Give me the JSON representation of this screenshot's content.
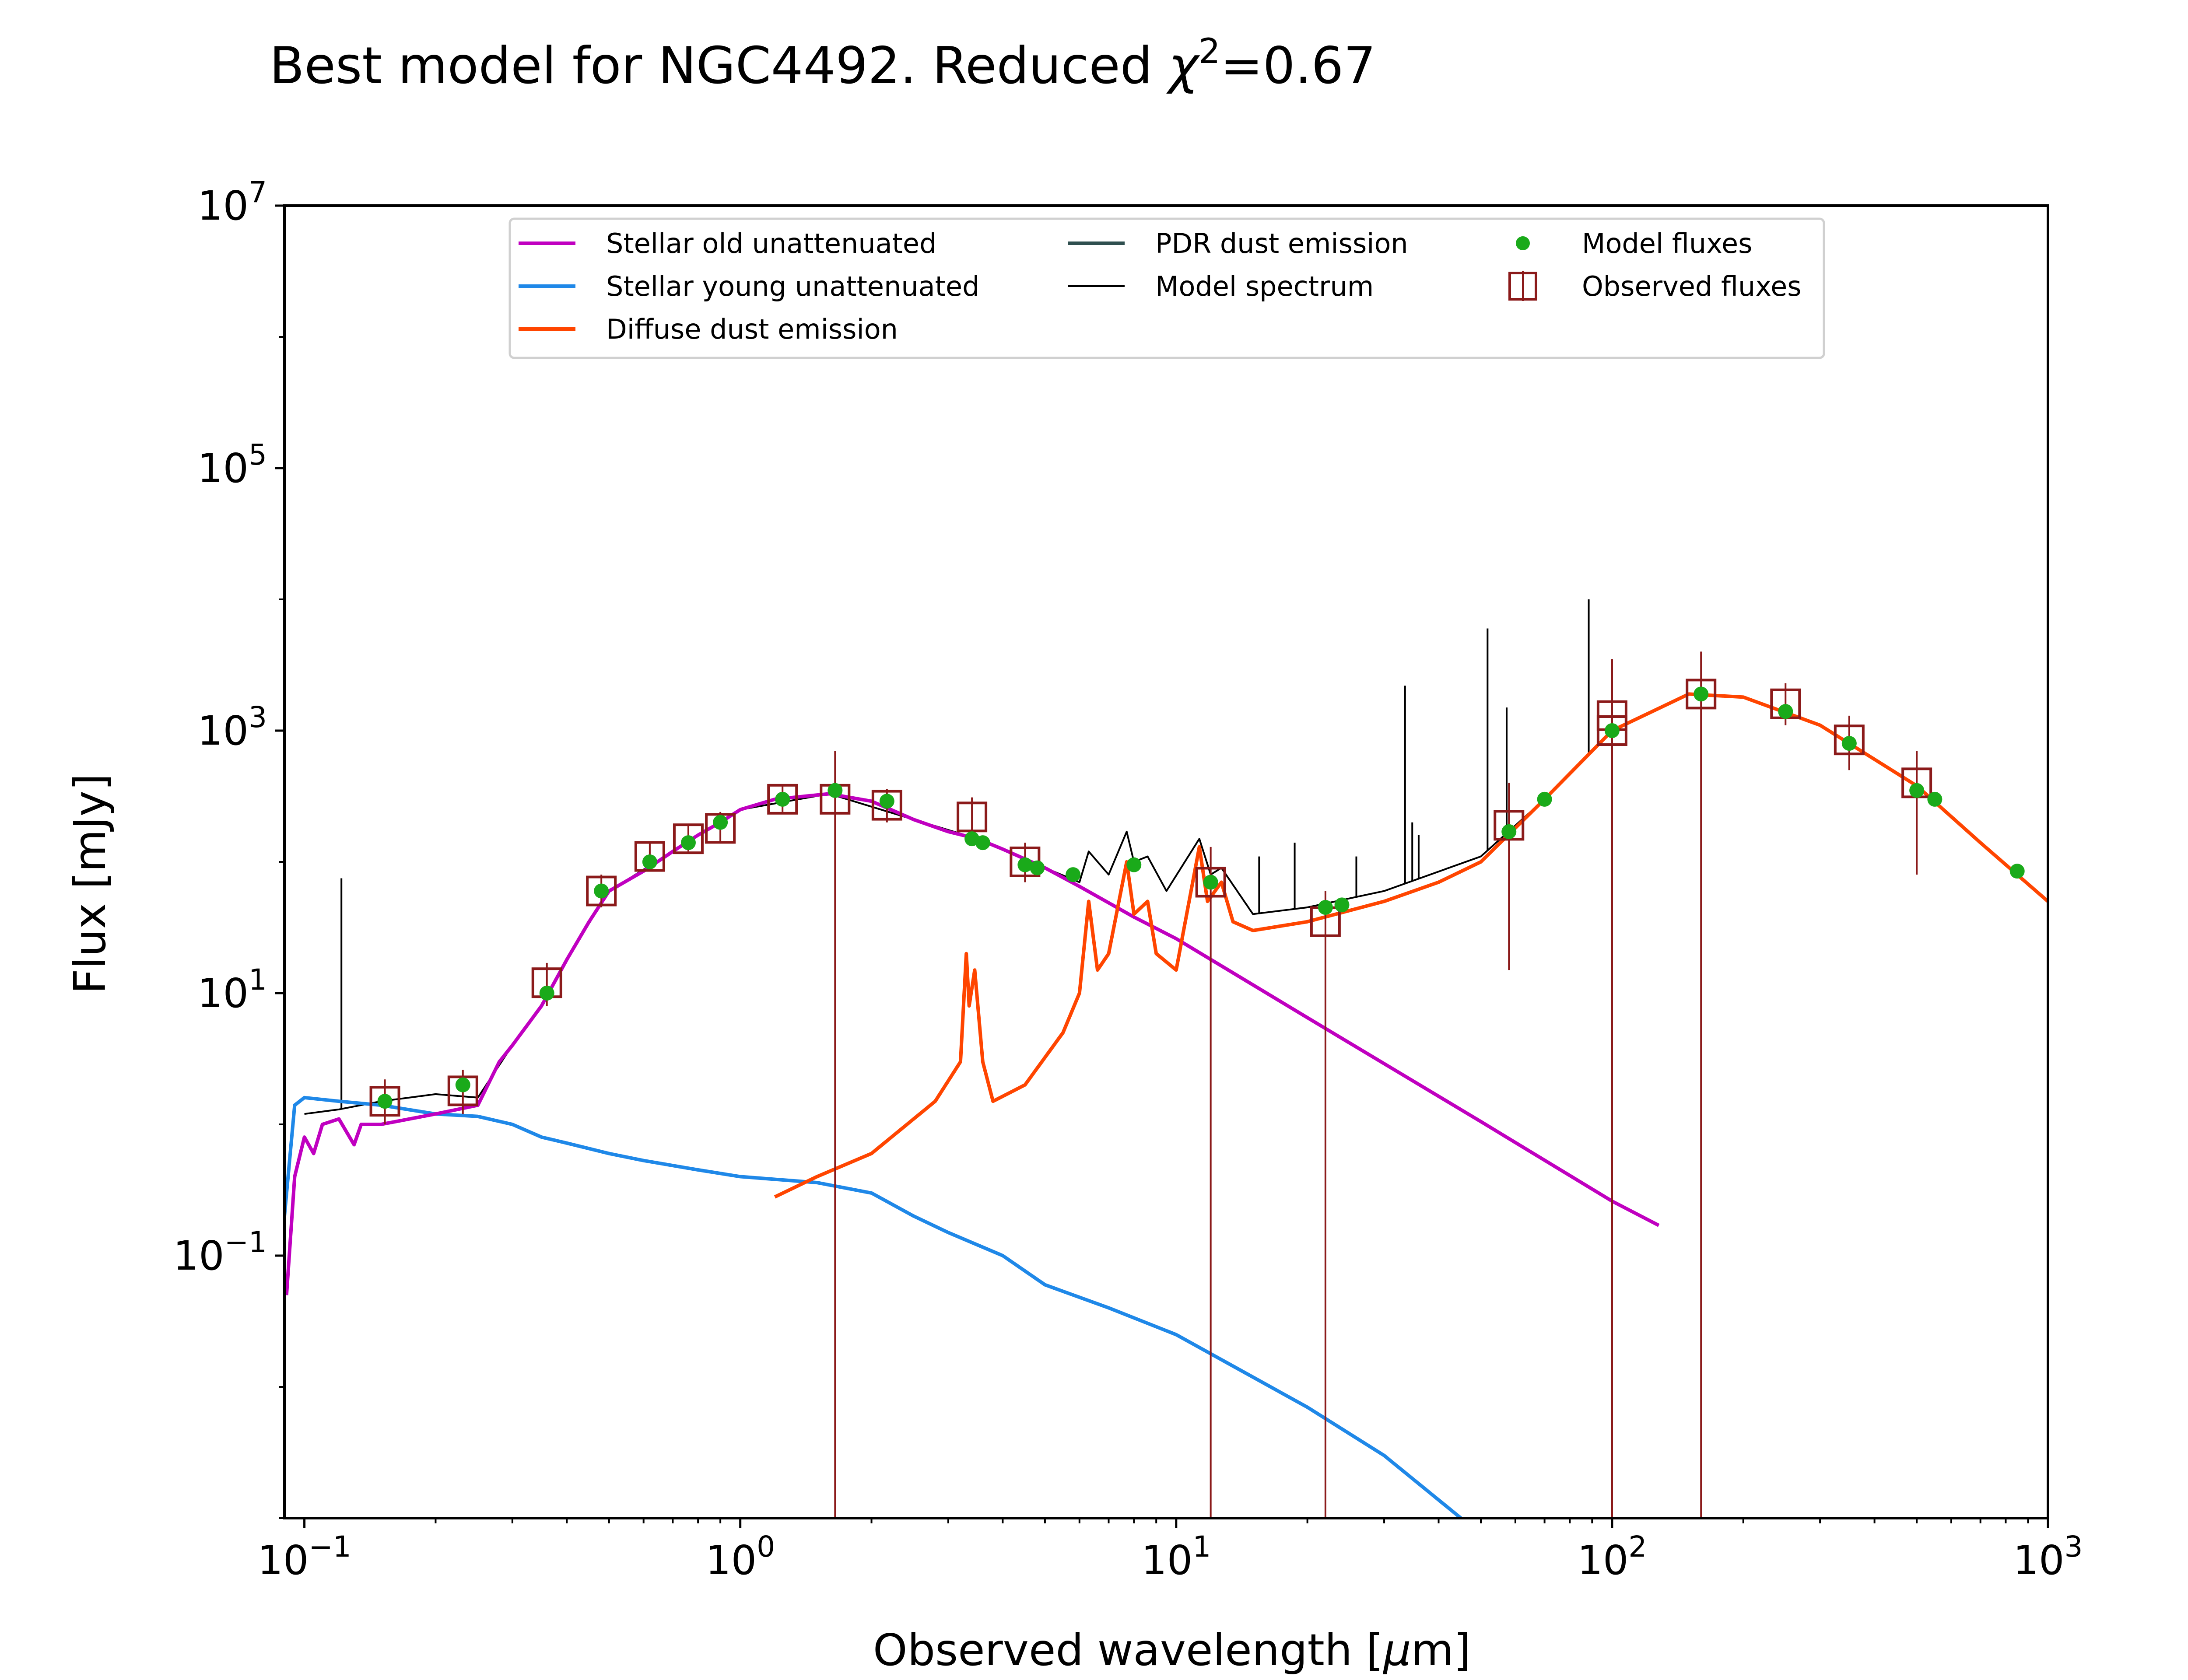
{
  "chart_data": {
    "type": "line",
    "title": "Best model for NGC4492. Reduced χ²=0.67",
    "title_parts": {
      "main": "Best model for NGC4492. Reduced ",
      "chi": "χ",
      "sup": "2",
      "value": "=0.67"
    },
    "xlabel": "Observed wavelength [μm]",
    "xlabel_parts": {
      "main": "Observed wavelength [",
      "mu": "μ",
      "unit": "m]"
    },
    "ylabel": "Flux [mJy]",
    "xscale": "log",
    "yscale": "log",
    "xlim": [
      0.09,
      1000
    ],
    "ylim": [
      0.001,
      10000000
    ],
    "grid": false,
    "legend_position": "top-center",
    "x_ticks": [
      {
        "base": "10",
        "exp": "−1",
        "value": 0.1
      },
      {
        "base": "10",
        "exp": "0",
        "value": 1
      },
      {
        "base": "10",
        "exp": "1",
        "value": 10
      },
      {
        "base": "10",
        "exp": "2",
        "value": 100
      },
      {
        "base": "10",
        "exp": "3",
        "value": 1000
      }
    ],
    "y_ticks": [
      {
        "base": "10",
        "exp": "−1",
        "value": 0.1
      },
      {
        "base": "10",
        "exp": "1",
        "value": 10
      },
      {
        "base": "10",
        "exp": "3",
        "value": 1000
      },
      {
        "base": "10",
        "exp": "5",
        "value": 100000
      },
      {
        "base": "10",
        "exp": "7",
        "value": 10000000
      }
    ],
    "series": [
      {
        "name": "Stellar old unattenuated",
        "color": "#c000c0",
        "kind": "line",
        "points": [
          [
            0.091,
            0.05
          ],
          [
            0.095,
            0.4
          ],
          [
            0.1,
            0.8
          ],
          [
            0.105,
            0.6
          ],
          [
            0.11,
            1.0
          ],
          [
            0.12,
            1.1
          ],
          [
            0.13,
            0.7
          ],
          [
            0.135,
            1.0
          ],
          [
            0.15,
            1.0
          ],
          [
            0.2,
            1.2
          ],
          [
            0.25,
            1.4
          ],
          [
            0.28,
            3
          ],
          [
            0.3,
            4
          ],
          [
            0.35,
            8
          ],
          [
            0.4,
            18
          ],
          [
            0.45,
            35
          ],
          [
            0.5,
            60
          ],
          [
            0.6,
            85
          ],
          [
            0.7,
            120
          ],
          [
            0.8,
            160
          ],
          [
            0.9,
            200
          ],
          [
            1.0,
            250
          ],
          [
            1.2,
            300
          ],
          [
            1.6,
            330
          ],
          [
            2.0,
            290
          ],
          [
            2.5,
            210
          ],
          [
            3.0,
            170
          ],
          [
            3.5,
            150
          ],
          [
            4.0,
            125
          ],
          [
            5.0,
            90
          ],
          [
            6.0,
            65
          ],
          [
            8.0,
            38
          ],
          [
            10.0,
            26
          ],
          [
            20.0,
            6.5
          ],
          [
            50.0,
            1.05
          ],
          [
            100.0,
            0.26
          ],
          [
            128.0,
            0.17
          ]
        ]
      },
      {
        "name": "Stellar young unattenuated",
        "color": "#1f88e8",
        "kind": "line",
        "points": [
          [
            0.09,
            0.2
          ],
          [
            0.095,
            1.4
          ],
          [
            0.1,
            1.6
          ],
          [
            0.12,
            1.5
          ],
          [
            0.15,
            1.4
          ],
          [
            0.2,
            1.2
          ],
          [
            0.25,
            1.15
          ],
          [
            0.3,
            1.0
          ],
          [
            0.35,
            0.8
          ],
          [
            0.4,
            0.72
          ],
          [
            0.5,
            0.6
          ],
          [
            0.6,
            0.53
          ],
          [
            0.8,
            0.45
          ],
          [
            1.0,
            0.4
          ],
          [
            1.5,
            0.36
          ],
          [
            2.0,
            0.3
          ],
          [
            2.5,
            0.2
          ],
          [
            3.0,
            0.15
          ],
          [
            4.0,
            0.1
          ],
          [
            5.0,
            0.06
          ],
          [
            7.0,
            0.04
          ],
          [
            10.0,
            0.025
          ],
          [
            20.0,
            0.007
          ],
          [
            30.0,
            0.003
          ],
          [
            45.0,
            0.001
          ]
        ]
      },
      {
        "name": "Diffuse dust emission",
        "color": "#ff4500",
        "kind": "line",
        "points": [
          [
            1.2,
            0.28
          ],
          [
            1.5,
            0.4
          ],
          [
            2.0,
            0.6
          ],
          [
            2.8,
            1.5
          ],
          [
            3.2,
            3
          ],
          [
            3.3,
            20
          ],
          [
            3.35,
            8
          ],
          [
            3.45,
            15
          ],
          [
            3.6,
            3
          ],
          [
            3.8,
            1.5
          ],
          [
            4.5,
            2
          ],
          [
            5.5,
            5
          ],
          [
            6.0,
            10
          ],
          [
            6.3,
            50
          ],
          [
            6.6,
            15
          ],
          [
            7.0,
            20
          ],
          [
            7.7,
            100
          ],
          [
            8.0,
            40
          ],
          [
            8.6,
            50
          ],
          [
            9.0,
            20
          ],
          [
            10.0,
            15
          ],
          [
            11.3,
            130
          ],
          [
            11.8,
            50
          ],
          [
            12.7,
            70
          ],
          [
            13.5,
            35
          ],
          [
            15.0,
            30
          ],
          [
            20.0,
            35
          ],
          [
            30.0,
            50
          ],
          [
            40.0,
            70
          ],
          [
            50.0,
            100
          ],
          [
            70.0,
            300
          ],
          [
            100.0,
            1000
          ],
          [
            150.0,
            1900
          ],
          [
            200.0,
            1800
          ],
          [
            300.0,
            1100
          ],
          [
            500.0,
            380
          ],
          [
            700.0,
            140
          ],
          [
            1000.0,
            50
          ]
        ]
      },
      {
        "name": "PDR dust emission",
        "color": "#2f4f4f",
        "kind": "line",
        "points": []
      },
      {
        "name": "Model spectrum",
        "color": "#000000",
        "kind": "line",
        "points": [
          [
            0.1,
            1.2
          ],
          [
            0.12,
            1.3
          ],
          [
            0.15,
            1.5
          ],
          [
            0.2,
            1.7
          ],
          [
            0.25,
            1.6
          ],
          [
            0.3,
            4
          ],
          [
            0.35,
            8
          ],
          [
            0.4,
            18
          ],
          [
            0.5,
            60
          ],
          [
            0.7,
            120
          ],
          [
            1.0,
            250
          ],
          [
            1.6,
            330
          ],
          [
            2.5,
            210
          ],
          [
            3.5,
            150
          ],
          [
            5.0,
            90
          ],
          [
            6.0,
            70
          ],
          [
            6.3,
            120
          ],
          [
            7.0,
            80
          ],
          [
            7.7,
            170
          ],
          [
            8.0,
            100
          ],
          [
            8.6,
            110
          ],
          [
            9.5,
            60
          ],
          [
            11.3,
            150
          ],
          [
            12.0,
            80
          ],
          [
            12.7,
            90
          ],
          [
            15.0,
            40
          ],
          [
            20.0,
            45
          ],
          [
            30.0,
            60
          ],
          [
            50.0,
            110
          ],
          [
            70.0,
            300
          ],
          [
            100.0,
            1000
          ],
          [
            150.0,
            1900
          ],
          [
            200.0,
            1800
          ],
          [
            300.0,
            1100
          ],
          [
            500.0,
            380
          ],
          [
            1000.0,
            50
          ]
        ],
        "emission_lines": [
          [
            0.1216,
            75
          ],
          [
            0.3727,
            12
          ],
          [
            15.5,
            110
          ],
          [
            18.7,
            140
          ],
          [
            25.9,
            110
          ],
          [
            33.5,
            2200
          ],
          [
            34.8,
            200
          ],
          [
            36.0,
            160
          ],
          [
            51.8,
            6000
          ],
          [
            57.3,
            1500
          ],
          [
            88.4,
            10000
          ],
          [
            100.0,
            3000
          ]
        ]
      },
      {
        "name": "Model fluxes",
        "color": "#1aaa1a",
        "kind": "scatter",
        "points": [
          [
            0.153,
            1.5
          ],
          [
            0.231,
            2
          ],
          [
            0.36,
            10
          ],
          [
            0.48,
            60
          ],
          [
            0.62,
            100
          ],
          [
            0.76,
            140
          ],
          [
            0.9,
            200
          ],
          [
            1.25,
            300
          ],
          [
            1.65,
            350
          ],
          [
            2.17,
            290
          ],
          [
            3.4,
            150
          ],
          [
            3.6,
            140
          ],
          [
            4.5,
            95
          ],
          [
            4.8,
            90
          ],
          [
            5.8,
            80
          ],
          [
            8.0,
            95
          ],
          [
            12.0,
            70
          ],
          [
            22.0,
            45
          ],
          [
            24.0,
            47
          ],
          [
            58.0,
            170
          ],
          [
            70.0,
            300
          ],
          [
            100.0,
            1000
          ],
          [
            160.0,
            1900
          ],
          [
            250.0,
            1400
          ],
          [
            350.0,
            800
          ],
          [
            500.0,
            350
          ],
          [
            550.0,
            300
          ],
          [
            850.0,
            85
          ]
        ]
      },
      {
        "name": "Observed fluxes",
        "color": "#8b1a1a",
        "kind": "errorbar",
        "points": [
          [
            0.153,
            1.5,
            1.0,
            2.2
          ],
          [
            0.231,
            1.8,
            1.2,
            2.6
          ],
          [
            0.36,
            12,
            8,
            17
          ],
          [
            0.48,
            60,
            45,
            80
          ],
          [
            0.62,
            110,
            85,
            140
          ],
          [
            0.76,
            150,
            120,
            190
          ],
          [
            0.9,
            180,
            140,
            240
          ],
          [
            1.25,
            300,
            240,
            380
          ],
          [
            1.65,
            300,
            0.001,
            700
          ],
          [
            2.17,
            270,
            200,
            360
          ],
          [
            3.4,
            220,
            150,
            310
          ],
          [
            4.5,
            100,
            70,
            140
          ],
          [
            12.0,
            70,
            0.001,
            130
          ],
          [
            22.0,
            35,
            0.001,
            60
          ],
          [
            58.0,
            190,
            15,
            400
          ],
          [
            100.0,
            1000,
            0.001,
            3500
          ],
          [
            100.0,
            1300,
            0.001,
            3500
          ],
          [
            160.0,
            1900,
            0.001,
            4000
          ],
          [
            250.0,
            1600,
            1100,
            2300
          ],
          [
            350.0,
            850,
            500,
            1300
          ],
          [
            500.0,
            400,
            80,
            700
          ]
        ]
      }
    ]
  }
}
